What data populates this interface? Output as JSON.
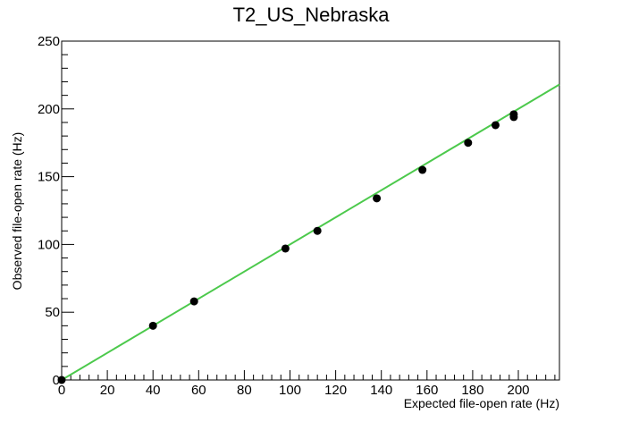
{
  "chart_data": {
    "type": "scatter",
    "title": "T2_US_Nebraska",
    "xlabel": "Expected file-open rate (Hz)",
    "ylabel": "Observed file-open rate (Hz)",
    "xlim": [
      0,
      218
    ],
    "ylim": [
      0,
      250
    ],
    "x_ticks": [
      0,
      20,
      40,
      60,
      80,
      100,
      120,
      140,
      160,
      180,
      200
    ],
    "y_ticks": [
      0,
      50,
      100,
      150,
      200,
      250
    ],
    "grid": false,
    "legend": "none",
    "series": [
      {
        "points": [
          {
            "x": 0,
            "y": 0
          },
          {
            "x": 40,
            "y": 40
          },
          {
            "x": 58,
            "y": 58
          },
          {
            "x": 98,
            "y": 97
          },
          {
            "x": 112,
            "y": 110
          },
          {
            "x": 138,
            "y": 134
          },
          {
            "x": 158,
            "y": 155
          },
          {
            "x": 178,
            "y": 175
          },
          {
            "x": 190,
            "y": 188
          },
          {
            "x": 198,
            "y": 194
          },
          {
            "x": 198,
            "y": 196
          }
        ],
        "color": "#000000"
      }
    ],
    "fit_line": {
      "x": [
        0,
        218
      ],
      "y": [
        0,
        218
      ],
      "color": "#4cc94c"
    }
  }
}
